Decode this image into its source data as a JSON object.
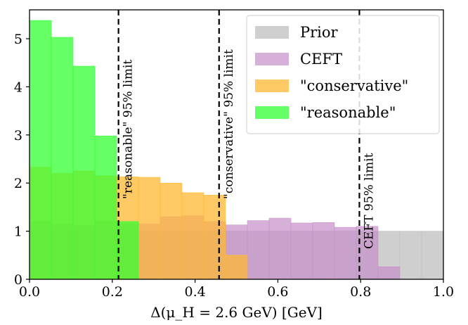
{
  "chart_data": {
    "type": "bar",
    "subtype": "overlaid-histogram",
    "title": "",
    "xlabel": "Δ(μ_H = 2.6 GeV) [GeV]",
    "ylabel": "",
    "xlim": [
      0.0,
      1.0
    ],
    "ylim": [
      0,
      5.6
    ],
    "xticks": [
      "0.0",
      "0.2",
      "0.4",
      "0.6",
      "0.8",
      "1.0"
    ],
    "yticks": [
      "0",
      "1",
      "2",
      "3",
      "4",
      "5"
    ],
    "grid": false,
    "legend_position": "top-right",
    "bin_edges": [
      0.0,
      0.0526,
      0.1053,
      0.1579,
      0.2105,
      0.2632,
      0.3158,
      0.3684,
      0.4211,
      0.4737,
      0.5263,
      0.5789,
      0.6316,
      0.6842,
      0.7368,
      0.7895,
      0.8421,
      0.8947,
      0.9474,
      1.0
    ],
    "series": [
      {
        "name": "Prior",
        "color": "#bfbfbf",
        "opacity": 0.75,
        "values": [
          1.0,
          1.0,
          1.0,
          1.0,
          1.0,
          1.0,
          1.0,
          1.0,
          1.0,
          1.0,
          1.0,
          1.0,
          1.0,
          1.0,
          1.0,
          1.0,
          1.0,
          1.0,
          1.0
        ]
      },
      {
        "name": "CEFT",
        "color": "#c58fc9",
        "opacity": 0.7,
        "values": [
          1.2,
          1.15,
          1.12,
          1.2,
          1.15,
          1.15,
          1.3,
          1.32,
          1.2,
          1.13,
          1.22,
          1.27,
          1.17,
          1.18,
          1.08,
          1.1,
          0.26,
          0,
          0
        ]
      },
      {
        "name": "\"conservative\"",
        "color": "#ffb833",
        "opacity": 0.75,
        "values": [
          2.33,
          2.2,
          2.25,
          2.15,
          2.13,
          2.12,
          2.0,
          1.8,
          1.75,
          0.5,
          0,
          0,
          0,
          0,
          0,
          0,
          0,
          0,
          0
        ]
      },
      {
        "name": "\"reasonable\"",
        "color": "#33ff33",
        "opacity": 0.75,
        "values": [
          5.38,
          5.03,
          4.43,
          2.98,
          1.2,
          0,
          0,
          0,
          0,
          0,
          0,
          0,
          0,
          0,
          0,
          0,
          0,
          0,
          0
        ]
      }
    ],
    "vlines": [
      {
        "x": 0.215,
        "label": "\"reasonable\" 95% limit"
      },
      {
        "x": 0.458,
        "label": "\"conservative\" 95% limit"
      },
      {
        "x": 0.797,
        "label": "CEFT 95% limit"
      }
    ]
  }
}
